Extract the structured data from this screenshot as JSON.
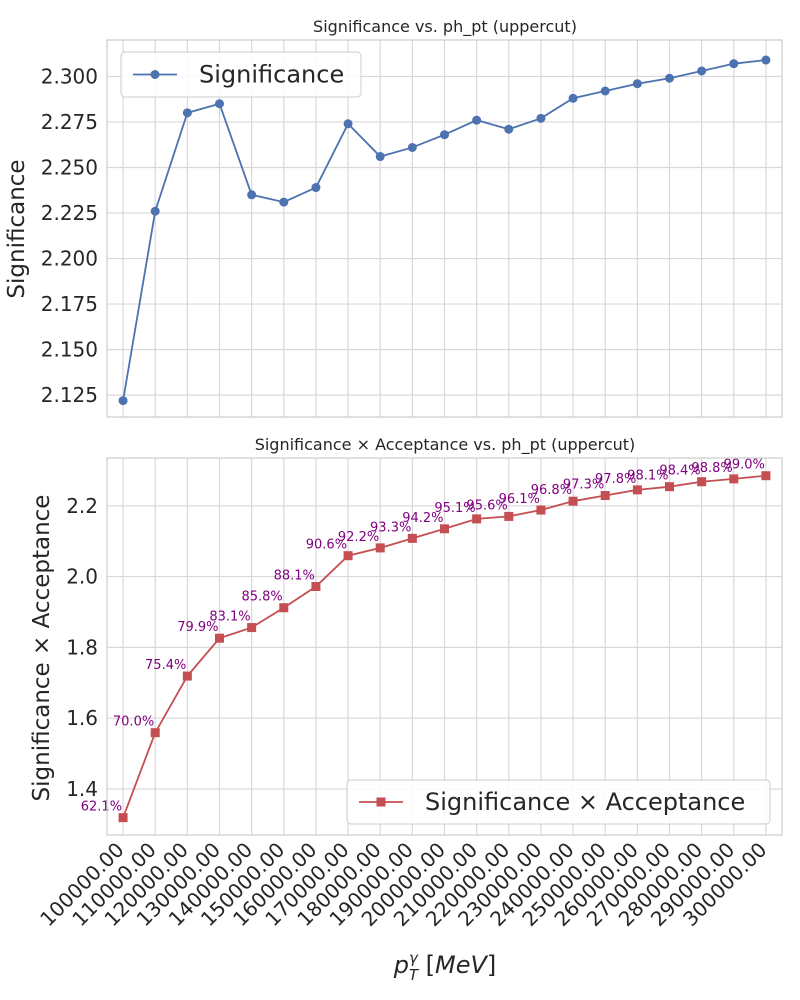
{
  "chart_data": [
    {
      "type": "line",
      "title": "Significance vs. ph_pt (uppercut)",
      "ylabel": "Significance",
      "xlabel": "",
      "ylim": [
        2.113,
        2.32
      ],
      "yticks": [
        "2.125",
        "2.150",
        "2.175",
        "2.200",
        "2.225",
        "2.250",
        "2.275",
        "2.300"
      ],
      "x": [
        100000,
        110000,
        120000,
        130000,
        140000,
        150000,
        160000,
        170000,
        180000,
        190000,
        200000,
        210000,
        220000,
        230000,
        240000,
        250000,
        260000,
        270000,
        280000,
        290000,
        300000
      ],
      "series": [
        {
          "name": "Significance",
          "color": "#4c72b0",
          "marker": "circle",
          "values": [
            2.122,
            2.226,
            2.28,
            2.285,
            2.235,
            2.231,
            2.239,
            2.274,
            2.256,
            2.261,
            2.268,
            2.276,
            2.271,
            2.277,
            2.288,
            2.292,
            2.296,
            2.299,
            2.303,
            2.307,
            2.309
          ]
        }
      ],
      "legend": "upper-left",
      "grid": true
    },
    {
      "type": "line",
      "title": "Significance × Acceptance vs. ph_pt (uppercut)",
      "ylabel": "Significance × Acceptance",
      "xlabel": "p_T^γ [MeV]",
      "ylim": [
        1.27,
        2.335
      ],
      "yticks": [
        "1.4",
        "1.6",
        "1.8",
        "2.0",
        "2.2"
      ],
      "x": [
        100000,
        110000,
        120000,
        130000,
        140000,
        150000,
        160000,
        170000,
        180000,
        190000,
        200000,
        210000,
        220000,
        230000,
        240000,
        250000,
        260000,
        270000,
        280000,
        290000,
        300000
      ],
      "xticks": [
        "100000.00",
        "110000.00",
        "120000.00",
        "130000.00",
        "140000.00",
        "150000.00",
        "160000.00",
        "170000.00",
        "180000.00",
        "190000.00",
        "200000.00",
        "210000.00",
        "220000.00",
        "230000.00",
        "240000.00",
        "250000.00",
        "260000.00",
        "270000.00",
        "280000.00",
        "290000.00",
        "300000.00"
      ],
      "series": [
        {
          "name": "Significance × Acceptance",
          "color": "#c44e52",
          "marker": "square",
          "values": [
            1.319,
            1.559,
            1.719,
            1.826,
            1.856,
            1.912,
            1.972,
            2.059,
            2.081,
            2.108,
            2.135,
            2.163,
            2.17,
            2.188,
            2.213,
            2.229,
            2.245,
            2.254,
            2.268,
            2.276,
            2.285
          ]
        }
      ],
      "annotations": [
        "62.1%",
        "70.0%",
        "75.4%",
        "79.9%",
        "83.1%",
        "85.8%",
        "88.1%",
        "90.6%",
        "92.2%",
        "93.3%",
        "94.2%",
        "95.1%",
        "95.6%",
        "96.1%",
        "96.8%",
        "97.3%",
        "97.8%",
        "98.1%",
        "98.4%",
        "98.8%",
        "99.0%"
      ],
      "annotation_color": "#800080",
      "legend": "lower-right",
      "grid": true
    }
  ]
}
